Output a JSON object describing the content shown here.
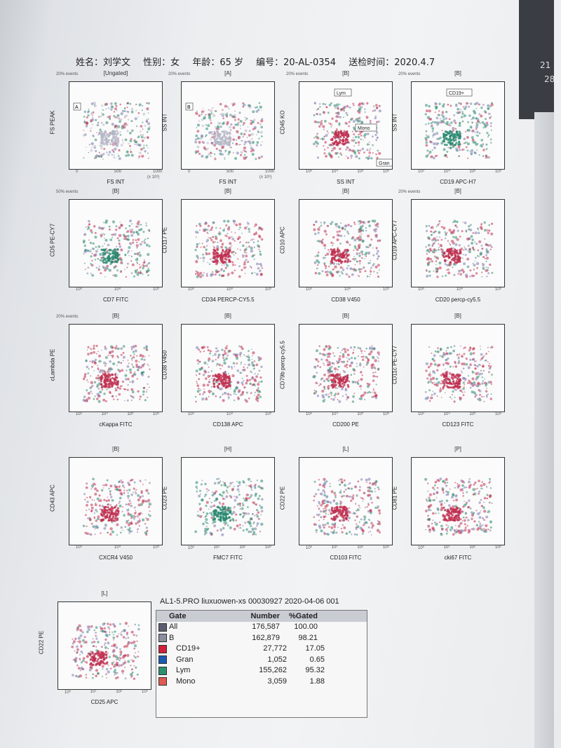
{
  "header": {
    "name": "姓名：刘学文",
    "sex": "性别：女",
    "age": "年龄：65 岁",
    "id": "编号：20-AL-0354",
    "date": "送检时间：2020.4.7"
  },
  "calendar": [
    "21",
    "28"
  ],
  "plots": [
    {
      "gate": "[Ungated]",
      "events": "20% events",
      "x": "FS INT",
      "y": "FS PEAK",
      "xt": [
        "0",
        "500",
        "1000"
      ],
      "xunit": "(x 10³)",
      "color": "#b8b8c8",
      "gate_box": "A"
    },
    {
      "gate": "[A]",
      "events": "20% events",
      "x": "FS INT",
      "y": "SS INT",
      "xt": [
        "0",
        "500",
        "1000"
      ],
      "xunit": "(x 10³)",
      "color": "#b8b8c8",
      "gate_box": "B"
    },
    {
      "gate": "[B]",
      "events": "20% events",
      "x": "SS INT",
      "y": "CD45 KO",
      "xt": [
        "10³",
        "10⁴",
        "10⁵",
        "10⁶"
      ],
      "color": "#c03050",
      "labels": [
        "Lym",
        "Mono",
        "Gran"
      ]
    },
    {
      "gate": "[B]",
      "events": "20% events",
      "x": "CD19 APC-H7",
      "y": "SS INT",
      "xt": [
        "10³",
        "10⁴",
        "10⁵",
        "10⁶"
      ],
      "color": "#2a8a70",
      "labels": [
        "CD19+"
      ]
    },
    {
      "gate": "[B]",
      "events": "50% events",
      "x": "CD7 FITC",
      "y": "CD5 PE-CY7",
      "xt": [
        "10³",
        "10⁴",
        "10⁵"
      ],
      "color": "#2a8a70"
    },
    {
      "gate": "[B]",
      "events": "",
      "x": "CD34 PERCP-CY5.5",
      "y": "CD117 PE",
      "xt": [
        "10³",
        "10⁴",
        "10⁵"
      ],
      "color": "#c03050"
    },
    {
      "gate": "[B]",
      "events": "",
      "x": "CD38 V450",
      "y": "CD10 APC",
      "xt": [
        "10³",
        "10⁴",
        "10⁵"
      ],
      "color": "#c03050"
    },
    {
      "gate": "[B]",
      "events": "20% events",
      "x": "CD20 percp-cy5.5",
      "y": "CD19 APC-CY7",
      "xt": [
        "10³",
        "10⁴",
        "10⁵"
      ],
      "color": "#c03050"
    },
    {
      "gate": "[B]",
      "events": "20% events",
      "x": "cKappa FITC",
      "y": "cLambda PE",
      "xt": [
        "10³",
        "10⁴",
        "10⁵",
        "10⁶"
      ],
      "color": "#c03050"
    },
    {
      "gate": "[B]",
      "events": "",
      "x": "CD138 APC",
      "y": "CD38 V450",
      "xt": [
        "10³",
        "10⁴",
        "10⁵"
      ],
      "color": "#c03050"
    },
    {
      "gate": "[B]",
      "events": "",
      "x": "CD200 PE",
      "y": "CD79b percp-cy5.5",
      "xt": [
        "10³",
        "10⁴",
        "10⁵",
        "10⁶"
      ],
      "color": "#c03050"
    },
    {
      "gate": "[B]",
      "events": "",
      "x": "CD123 FITC",
      "y": "CD11c PE-CY7",
      "xt": [
        "10³",
        "10⁴",
        "10⁵",
        "10⁶"
      ],
      "color": "#c03050"
    },
    {
      "gate": "[B]",
      "events": "",
      "x": "CXCR4 V450",
      "y": "CD43 APC",
      "xt": [
        "10³",
        "10⁴",
        "10⁵"
      ],
      "color": "#c03050"
    },
    {
      "gate": "[H]",
      "events": "",
      "x": "FMC7 FITC",
      "y": "CD23 PE",
      "xt": [
        "10⁰",
        "10¹",
        "10²",
        "10³"
      ],
      "color": "#2a8a70"
    },
    {
      "gate": "[L]",
      "events": "",
      "x": "CD103 FITC",
      "y": "CD22 PE",
      "xt": [
        "10⁰",
        "10¹",
        "10²",
        "10³"
      ],
      "color": "#c03050"
    },
    {
      "gate": "[P]",
      "events": "",
      "x": "cki67  FITC",
      "y": "CD81 PE",
      "xt": [
        "10⁰",
        "10¹",
        "10²",
        "10³"
      ],
      "color": "#c03050"
    },
    {
      "gate": "[L]",
      "events": "",
      "x": "CD25 APC",
      "y": "CD22 PE",
      "xt": [
        "10⁰",
        "10¹",
        "10²",
        "10³"
      ],
      "color": "#c03050"
    }
  ],
  "stats": {
    "title": "AL1-5.PRO liuxuowen-xs 00030927 2020-04-06 001",
    "headers": [
      "Gate",
      "Number",
      "%Gated"
    ],
    "rows": [
      {
        "gate": "All",
        "number": "176,587",
        "pct": "100.00",
        "color": "#5a5e6e",
        "indent": false
      },
      {
        "gate": "B",
        "number": "162,879",
        "pct": "98.21",
        "color": "#8a8e9e",
        "indent": false
      },
      {
        "gate": "CD19+",
        "number": "27,772",
        "pct": "17.05",
        "color": "#d0203a",
        "indent": true
      },
      {
        "gate": "Gran",
        "number": "1,052",
        "pct": "0.65",
        "color": "#1a5ab0",
        "indent": true
      },
      {
        "gate": "Lym",
        "number": "155,262",
        "pct": "95.32",
        "color": "#2a9070",
        "indent": true
      },
      {
        "gate": "Mono",
        "number": "3,059",
        "pct": "1.88",
        "color": "#e05a50",
        "indent": true
      }
    ]
  }
}
